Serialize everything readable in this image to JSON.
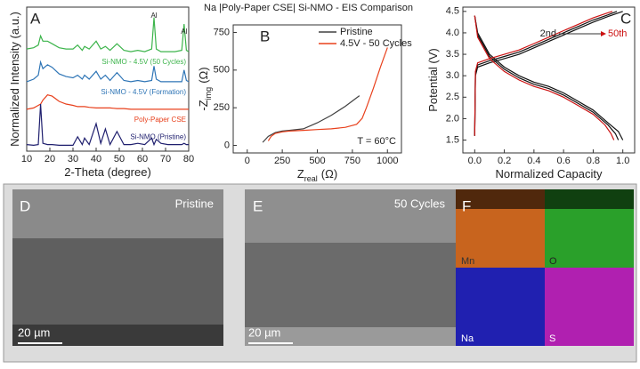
{
  "chart_data": [
    {
      "type": "line",
      "panel_label": "A",
      "xlabel": "2-Theta (degree)",
      "ylabel": "Normalized Intensity (a.u.)",
      "x": [
        10,
        13,
        15,
        16,
        17,
        19,
        21,
        24,
        27,
        30,
        32,
        34,
        35,
        37,
        40,
        42,
        44,
        46,
        49,
        52,
        55,
        58,
        61,
        64,
        65,
        66,
        68,
        71,
        74,
        77,
        78,
        79,
        80
      ],
      "xlim": [
        10,
        80
      ],
      "xticks": [
        10,
        20,
        30,
        40,
        50,
        60,
        70,
        80
      ],
      "ylim": [
        0,
        11
      ],
      "series": [
        {
          "name": "Si-NMO - 4.5V (50 Cycles)",
          "color": "#3cb44b",
          "values": [
            7.8,
            7.9,
            8.1,
            8.8,
            8.4,
            8.4,
            8.2,
            7.9,
            7.8,
            7.8,
            8.1,
            7.7,
            8.0,
            7.8,
            8.4,
            7.8,
            8.0,
            7.7,
            8.2,
            7.7,
            7.6,
            7.7,
            7.6,
            7.8,
            10.2,
            7.8,
            7.6,
            7.6,
            7.6,
            7.7,
            9.7,
            7.7,
            7.6
          ]
        },
        {
          "name": "Si-NMO - 4.5V (Formation)",
          "color": "#2e75b6",
          "values": [
            5.3,
            5.5,
            5.8,
            6.8,
            6.3,
            6.6,
            6.4,
            5.9,
            5.7,
            5.6,
            5.8,
            5.5,
            5.8,
            5.5,
            6.1,
            5.5,
            5.8,
            5.4,
            6.0,
            5.4,
            5.3,
            5.4,
            5.3,
            5.4,
            6.5,
            5.5,
            5.3,
            5.3,
            5.3,
            5.3,
            6.2,
            5.4,
            5.3
          ]
        },
        {
          "name": "Poly-Paper CSE",
          "color": "#e8401c",
          "values": [
            3.2,
            3.3,
            3.5,
            3.6,
            3.9,
            4.3,
            4.2,
            3.8,
            3.6,
            3.5,
            3.4,
            3.4,
            3.4,
            3.35,
            3.3,
            3.3,
            3.3,
            3.3,
            3.25,
            3.25,
            3.2,
            3.2,
            3.2,
            3.2,
            3.2,
            3.2,
            3.2,
            3.2,
            3.2,
            3.2,
            3.2,
            3.2,
            3.2
          ]
        },
        {
          "name": "Si-NMO (Pristine)",
          "color": "#1f1f6e",
          "values": [
            0.5,
            0.45,
            0.5,
            3.6,
            0.6,
            0.5,
            0.5,
            0.45,
            0.45,
            0.45,
            1.1,
            0.5,
            1.0,
            0.5,
            2.1,
            0.6,
            1.7,
            0.5,
            1.5,
            0.5,
            0.5,
            0.6,
            0.5,
            1.0,
            0.5,
            0.9,
            0.6,
            0.5,
            0.5,
            0.5,
            0.6,
            0.5,
            0.5
          ]
        }
      ],
      "annotations": [
        {
          "text": "Al",
          "x": 65
        },
        {
          "text": "Al",
          "x": 78
        }
      ]
    },
    {
      "type": "line",
      "panel_label": "B",
      "title": "Na |Poly-Paper CSE| Si-NMO - EIS Comparison",
      "xlabel": "Z",
      "xlabel_sub": "real",
      "xlabel_unit": "(Ω)",
      "ylabel": "-Z",
      "ylabel_sub": "img",
      "ylabel_unit": "(Ω)",
      "xlim": [
        -100,
        1100
      ],
      "xticks": [
        0,
        250,
        500,
        750,
        1000
      ],
      "ylim": [
        -50,
        800
      ],
      "yticks": [
        0,
        250,
        500,
        750
      ],
      "series": [
        {
          "name": "Pristine",
          "color": "#404040",
          "x": [
            110,
            150,
            200,
            250,
            300,
            400,
            500,
            600,
            700,
            800
          ],
          "values": [
            20,
            60,
            85,
            95,
            100,
            110,
            150,
            200,
            260,
            330
          ]
        },
        {
          "name": "4.5V - 50 Cycles",
          "color": "#e8401c",
          "x": [
            150,
            170,
            200,
            250,
            300,
            400,
            500,
            600,
            700,
            780,
            820,
            850,
            900,
            950,
            1000
          ],
          "values": [
            30,
            60,
            80,
            90,
            95,
            100,
            105,
            110,
            120,
            140,
            180,
            250,
            380,
            520,
            650
          ]
        }
      ],
      "annotation": "T = 60°C"
    },
    {
      "type": "line",
      "panel_label": "C",
      "xlabel": "Normalized Capacity",
      "ylabel": "Potential (V)",
      "xlim": [
        -0.08,
        1.08
      ],
      "xticks": [
        {
          "value": 0,
          "label": "0.0"
        },
        0.2,
        0.4,
        0.6,
        0.8,
        {
          "value": 1,
          "label": "1.0"
        }
      ],
      "ylim": [
        1.2,
        4.6
      ],
      "yticks": [
        1.5,
        {
          "value": 2,
          "label": "2.0"
        },
        2.5,
        {
          "value": 3,
          "label": "3.0"
        },
        3.5,
        {
          "value": 4,
          "label": "4.0"
        },
        4.5
      ],
      "series": [
        {
          "color": "#111111",
          "x": [
            0,
            0.005,
            0.02,
            0.1,
            0.2,
            0.3,
            0.4,
            0.5,
            0.6,
            0.7,
            0.8,
            0.9,
            1.0
          ],
          "values": [
            1.6,
            3.0,
            3.2,
            3.3,
            3.4,
            3.5,
            3.65,
            3.8,
            3.95,
            4.1,
            4.25,
            4.38,
            4.5
          ]
        },
        {
          "color": "#111111",
          "x": [
            0,
            0.02,
            0.1,
            0.2,
            0.3,
            0.4,
            0.5,
            0.6,
            0.7,
            0.8,
            0.9,
            0.97,
            1.0
          ],
          "values": [
            4.4,
            4.0,
            3.5,
            3.2,
            3.0,
            2.85,
            2.75,
            2.6,
            2.4,
            2.2,
            1.9,
            1.7,
            1.5
          ]
        },
        {
          "color": "#111111",
          "x": [
            0,
            0.005,
            0.02,
            0.1,
            0.2,
            0.3,
            0.4,
            0.5,
            0.6,
            0.7,
            0.8,
            0.9,
            0.96
          ],
          "values": [
            1.6,
            3.05,
            3.25,
            3.35,
            3.45,
            3.55,
            3.7,
            3.85,
            4.0,
            4.15,
            4.3,
            4.42,
            4.5
          ]
        },
        {
          "color": "#111111",
          "x": [
            0,
            0.02,
            0.1,
            0.2,
            0.3,
            0.4,
            0.5,
            0.6,
            0.7,
            0.8,
            0.9,
            0.95,
            0.97
          ],
          "values": [
            4.4,
            3.95,
            3.45,
            3.15,
            2.95,
            2.8,
            2.7,
            2.55,
            2.35,
            2.15,
            1.85,
            1.65,
            1.5
          ]
        },
        {
          "color": "#cc1111",
          "x": [
            0,
            0.005,
            0.02,
            0.1,
            0.2,
            0.3,
            0.4,
            0.5,
            0.6,
            0.7,
            0.8,
            0.9,
            0.93
          ],
          "values": [
            1.6,
            3.1,
            3.3,
            3.4,
            3.5,
            3.6,
            3.75,
            3.9,
            4.05,
            4.2,
            4.35,
            4.47,
            4.5
          ]
        },
        {
          "color": "#cc1111",
          "x": [
            0,
            0.02,
            0.1,
            0.2,
            0.3,
            0.4,
            0.5,
            0.6,
            0.7,
            0.8,
            0.88,
            0.92,
            0.94
          ],
          "values": [
            4.4,
            3.9,
            3.4,
            3.1,
            2.9,
            2.75,
            2.65,
            2.5,
            2.3,
            2.1,
            1.85,
            1.65,
            1.5
          ]
        }
      ],
      "annotations": [
        "2nd",
        "50th"
      ]
    }
  ],
  "micrographs": [
    {
      "panel_label": "D",
      "caption": "Pristine",
      "scale": "20 µm"
    },
    {
      "panel_label": "E",
      "caption": "50 Cycles",
      "scale": "20 µm"
    },
    {
      "panel_label": "F",
      "maps": [
        "Mn",
        "O",
        "Na",
        "S"
      ]
    }
  ]
}
